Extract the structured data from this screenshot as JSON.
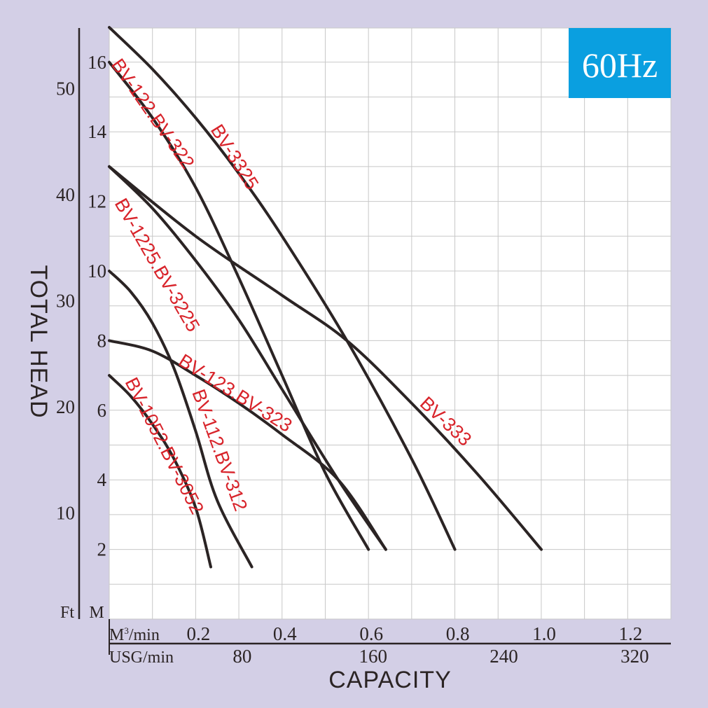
{
  "chart_data": {
    "type": "line",
    "title": "60Hz",
    "xlabel": "CAPACITY",
    "ylabel": "TOTAL HEAD",
    "x_unit_primary": "M³/min",
    "x_unit_secondary": "USG/min",
    "y_unit_primary": "M",
    "y_unit_secondary": "Ft",
    "xlim": [
      0.0,
      1.3
    ],
    "ylim": [
      0,
      17
    ],
    "x_ticks_m3min": [
      "0.2",
      "0.4",
      "0.6",
      "0.8",
      "1.0",
      "1.2"
    ],
    "x_ticks_usg": [
      "80",
      "160",
      "240",
      "320"
    ],
    "y_ticks_m": [
      "2",
      "4",
      "6",
      "8",
      "10",
      "12",
      "14",
      "16"
    ],
    "y_ticks_ft": [
      "10",
      "20",
      "30",
      "40",
      "50"
    ],
    "grid": true,
    "series": [
      {
        "name": "BV-3325",
        "points": [
          [
            0.0,
            17.0
          ],
          [
            0.1,
            15.8
          ],
          [
            0.2,
            14.4
          ],
          [
            0.3,
            12.8
          ],
          [
            0.4,
            11.0
          ],
          [
            0.55,
            8.0
          ],
          [
            0.7,
            4.6
          ],
          [
            0.8,
            2.0
          ]
        ]
      },
      {
        "name": "BV-122.BV-322",
        "points": [
          [
            0.0,
            16.0
          ],
          [
            0.1,
            14.4
          ],
          [
            0.2,
            12.4
          ],
          [
            0.3,
            9.8
          ],
          [
            0.4,
            7.0
          ],
          [
            0.5,
            4.2
          ],
          [
            0.6,
            2.0
          ]
        ]
      },
      {
        "name": "BV-333",
        "points": [
          [
            0.0,
            13.0
          ],
          [
            0.2,
            11.0
          ],
          [
            0.4,
            9.3
          ],
          [
            0.55,
            8.0
          ],
          [
            0.7,
            6.2
          ],
          [
            0.85,
            4.2
          ],
          [
            1.0,
            2.0
          ]
        ]
      },
      {
        "name": "BV-1225.BV-3225",
        "points": [
          [
            0.0,
            13.0
          ],
          [
            0.1,
            11.8
          ],
          [
            0.2,
            10.3
          ],
          [
            0.3,
            8.6
          ],
          [
            0.4,
            6.6
          ],
          [
            0.53,
            4.0
          ],
          [
            0.64,
            2.0
          ]
        ]
      },
      {
        "name": "BV-123.BV-323",
        "points": [
          [
            0.0,
            8.0
          ],
          [
            0.1,
            7.7
          ],
          [
            0.2,
            7.0
          ],
          [
            0.3,
            6.2
          ],
          [
            0.4,
            5.3
          ],
          [
            0.53,
            4.0
          ],
          [
            0.64,
            2.0
          ]
        ]
      },
      {
        "name": "BV-112.BV-312",
        "points": [
          [
            0.0,
            10.0
          ],
          [
            0.05,
            9.4
          ],
          [
            0.1,
            8.5
          ],
          [
            0.15,
            7.2
          ],
          [
            0.2,
            5.4
          ],
          [
            0.25,
            3.4
          ],
          [
            0.33,
            1.5
          ]
        ]
      },
      {
        "name": "BV-1052.BV-3052",
        "points": [
          [
            0.0,
            7.0
          ],
          [
            0.05,
            6.4
          ],
          [
            0.1,
            5.6
          ],
          [
            0.15,
            4.6
          ],
          [
            0.2,
            3.2
          ],
          [
            0.235,
            1.5
          ]
        ]
      }
    ]
  }
}
